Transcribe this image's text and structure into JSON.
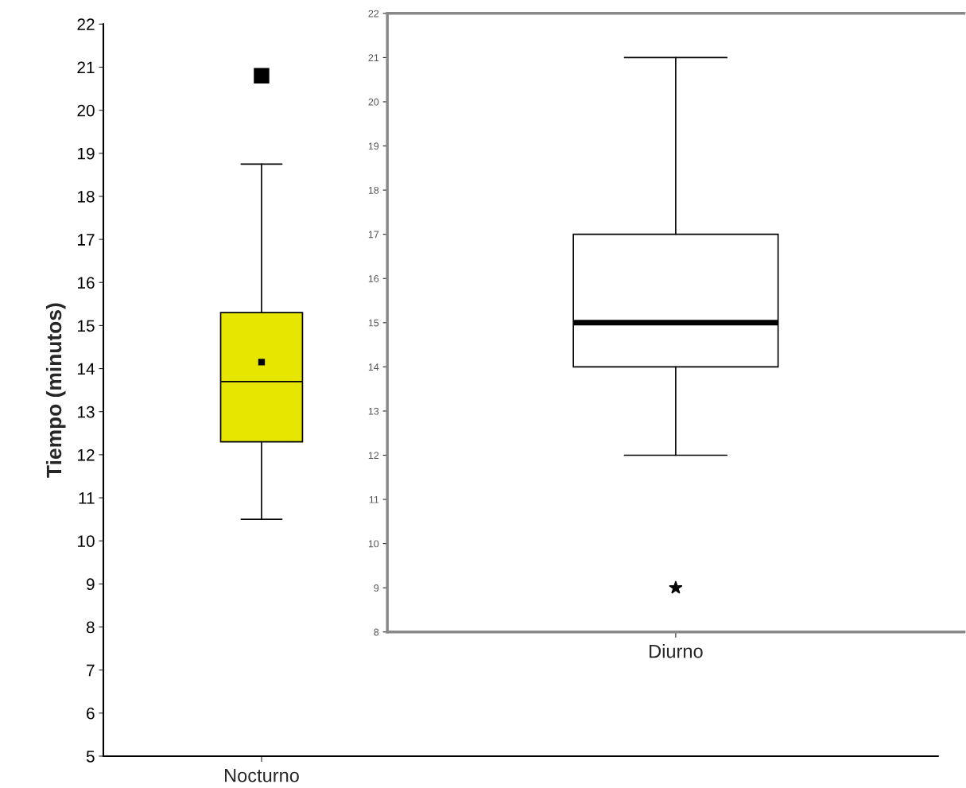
{
  "chart_data": [
    {
      "type": "box",
      "ylabel": "Tiempo (minutos)",
      "categories": [
        "Nocturno"
      ],
      "ylim": [
        5,
        22
      ],
      "yticks": [
        5,
        6,
        7,
        8,
        9,
        10,
        11,
        12,
        13,
        14,
        15,
        16,
        17,
        18,
        19,
        20,
        21,
        22
      ],
      "colors": [
        "#e6e600"
      ],
      "marker": "square",
      "grid": false,
      "legend": false,
      "boxes": [
        {
          "low": 10.5,
          "q1": 12.3,
          "median": 13.7,
          "q3": 15.3,
          "high": 18.75,
          "mean": 14.15,
          "outliers": [
            20.8
          ]
        }
      ]
    },
    {
      "type": "box",
      "categories": [
        "Diurno"
      ],
      "ylim": [
        8,
        22
      ],
      "yticks": [
        8,
        9,
        10,
        11,
        12,
        13,
        14,
        15,
        16,
        17,
        18,
        19,
        20,
        21,
        22
      ],
      "colors": [
        "#ffffff"
      ],
      "marker": "star",
      "grid": false,
      "legend": false,
      "boxes": [
        {
          "low": 12,
          "q1": 14,
          "median": 15,
          "q3": 17,
          "high": 21,
          "outliers": [
            9
          ]
        }
      ]
    }
  ]
}
